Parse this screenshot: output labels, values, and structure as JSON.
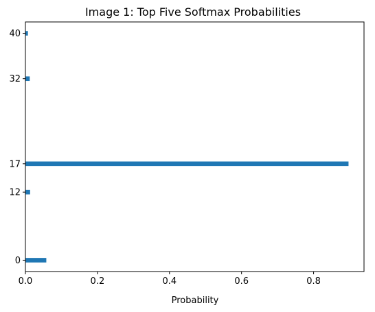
{
  "chart_data": {
    "type": "bar",
    "orientation": "horizontal",
    "title": "Image 1: Top Five Softmax Probabilities",
    "xlabel": "Probability",
    "ylabel": "",
    "categories": [
      "0",
      "12",
      "17",
      "32",
      "40"
    ],
    "y_positions": [
      0,
      12,
      17,
      32,
      40
    ],
    "values": [
      0.058,
      0.013,
      0.897,
      0.012,
      0.007
    ],
    "xlim": [
      0.0,
      0.94
    ],
    "ylim": [
      -2.0,
      42.0
    ],
    "xticks": [
      0.0,
      0.2,
      0.4,
      0.6,
      0.8
    ],
    "xtick_labels": [
      "0.0",
      "0.2",
      "0.4",
      "0.6",
      "0.8"
    ],
    "yticks": [
      0,
      12,
      17,
      32,
      40
    ],
    "ytick_labels": [
      "0",
      "12",
      "17",
      "32",
      "40"
    ],
    "bar_color": "#1f77b4",
    "bar_thickness_units": 0.8,
    "grid": false,
    "legend": "none"
  }
}
